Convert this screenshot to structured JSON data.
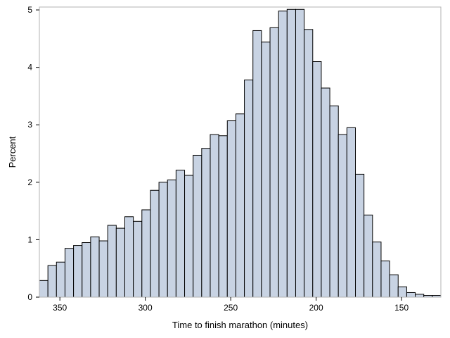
{
  "chart_data": {
    "type": "bar",
    "title": "",
    "xlabel": "Time to finish marathon (minutes)",
    "ylabel": "Percent",
    "x_reversed": true,
    "xlim": [
      362,
      127
    ],
    "ylim": [
      0,
      5.05
    ],
    "x_ticks": [
      350,
      300,
      250,
      200,
      150
    ],
    "y_ticks": [
      0,
      1,
      2,
      3,
      4,
      5
    ],
    "bin_width": 5,
    "bin_start": 362,
    "fill_color": "#c8d3e3",
    "edge_color": "#000000",
    "frame_color": "#b3b3b3",
    "grid": false,
    "values": [
      0.29,
      0.55,
      0.61,
      0.85,
      0.9,
      0.95,
      1.05,
      0.98,
      1.25,
      1.2,
      1.4,
      1.32,
      1.52,
      1.86,
      2.0,
      2.04,
      2.21,
      2.12,
      2.47,
      2.59,
      2.83,
      2.81,
      3.07,
      3.19,
      3.78,
      4.64,
      4.44,
      4.69,
      4.98,
      5.01,
      5.01,
      4.66,
      4.1,
      3.64,
      3.33,
      2.83,
      2.95,
      2.14,
      1.43,
      0.96,
      0.63,
      0.39,
      0.18,
      0.08,
      0.05,
      0.03,
      0.03
    ]
  }
}
